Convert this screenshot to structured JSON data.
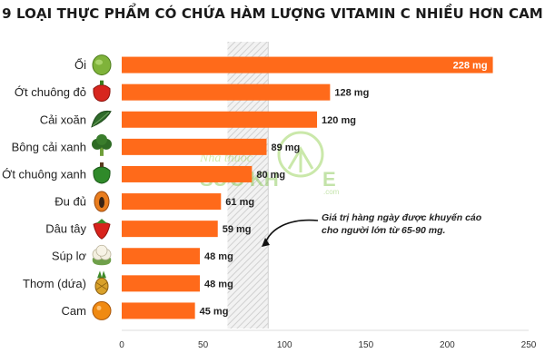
{
  "title": "9 LOẠI THỰC PHẨM CÓ CHỨA HÀM LƯỢNG VITAMIN C NHIỀU HƠN CAM",
  "colors": {
    "bar": "#ff6a1a",
    "band": "#d0d0d0",
    "text": "#222222"
  },
  "annotation": {
    "line1": "Giá trị hàng ngày được khuyến cáo",
    "line2": "cho người lớn từ 65-90 mg."
  },
  "watermark": {
    "line1": "Nhà thuốc",
    "line2a": "SỨC KH",
    "line2b": "E",
    "line3": ".com"
  },
  "chart_data": {
    "type": "bar",
    "orientation": "horizontal",
    "title": "9 LOẠI THỰC PHẨM CÓ CHỨA HÀM LƯỢNG VITAMIN C NHIỀU HƠN CAM",
    "categories": [
      "Ổi",
      "Ớt chuông đỏ",
      "Cải xoăn",
      "Bông cải xanh",
      "Ớt chuông xanh",
      "Đu đủ",
      "Dâu tây",
      "Súp lơ",
      "Thơm (dứa)",
      "Cam"
    ],
    "values": [
      228,
      128,
      120,
      89,
      80,
      61,
      59,
      48,
      48,
      45
    ],
    "value_labels": [
      "228 mg",
      "128 mg",
      "120 mg",
      "89 mg",
      "80 mg",
      "61 mg",
      "59 mg",
      "48 mg",
      "48 mg",
      "45 mg"
    ],
    "icons": [
      "guava-icon",
      "red-pepper-icon",
      "kale-icon",
      "broccoli-icon",
      "green-pepper-icon",
      "papaya-icon",
      "strawberry-icon",
      "cauliflower-icon",
      "pineapple-icon",
      "orange-icon"
    ],
    "xlim": [
      0,
      250
    ],
    "xticks": [
      0,
      50,
      100,
      150,
      200,
      250
    ],
    "recommended_range": [
      65,
      90
    ],
    "grid": false,
    "xlabel": "",
    "ylabel": ""
  }
}
